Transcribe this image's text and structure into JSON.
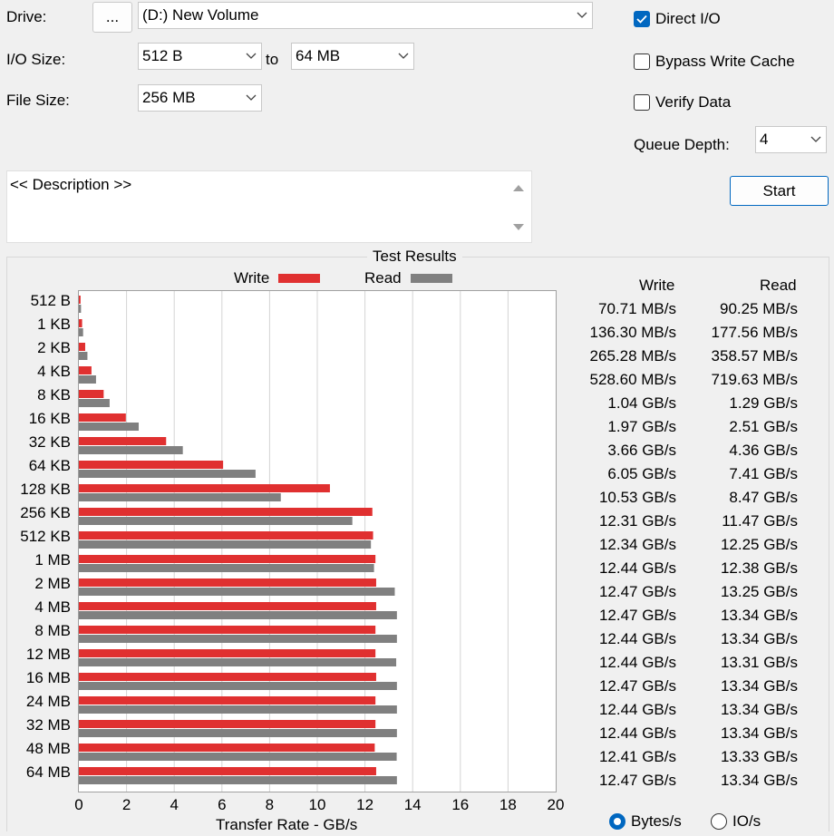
{
  "form": {
    "drive_label": "Drive:",
    "browse_label": "...",
    "drive_value": "(D:) New Volume",
    "io_size_label": "I/O Size:",
    "io_from": "512 B",
    "to_label": "to",
    "io_to": "64 MB",
    "file_size_label": "File Size:",
    "file_size": "256 MB",
    "description": "<< Description >>"
  },
  "options": {
    "direct_io_label": "Direct I/O",
    "direct_io_checked": true,
    "bypass_label": "Bypass Write Cache",
    "bypass_checked": false,
    "verify_label": "Verify Data",
    "verify_checked": false,
    "queue_depth_label": "Queue Depth:",
    "queue_depth": "4",
    "start_label": "Start"
  },
  "results": {
    "group_title": "Test Results",
    "write_header": "Write",
    "read_header": "Read",
    "rows": [
      {
        "size": "512 B",
        "write": "70.71 MB/s",
        "read": "90.25 MB/s"
      },
      {
        "size": "1 KB",
        "write": "136.30 MB/s",
        "read": "177.56 MB/s"
      },
      {
        "size": "2 KB",
        "write": "265.28 MB/s",
        "read": "358.57 MB/s"
      },
      {
        "size": "4 KB",
        "write": "528.60 MB/s",
        "read": "719.63 MB/s"
      },
      {
        "size": "8 KB",
        "write": "1.04 GB/s",
        "read": "1.29 GB/s"
      },
      {
        "size": "16 KB",
        "write": "1.97 GB/s",
        "read": "2.51 GB/s"
      },
      {
        "size": "32 KB",
        "write": "3.66 GB/s",
        "read": "4.36 GB/s"
      },
      {
        "size": "64 KB",
        "write": "6.05 GB/s",
        "read": "7.41 GB/s"
      },
      {
        "size": "128 KB",
        "write": "10.53 GB/s",
        "read": "8.47 GB/s"
      },
      {
        "size": "256 KB",
        "write": "12.31 GB/s",
        "read": "11.47 GB/s"
      },
      {
        "size": "512 KB",
        "write": "12.34 GB/s",
        "read": "12.25 GB/s"
      },
      {
        "size": "1 MB",
        "write": "12.44 GB/s",
        "read": "12.38 GB/s"
      },
      {
        "size": "2 MB",
        "write": "12.47 GB/s",
        "read": "13.25 GB/s"
      },
      {
        "size": "4 MB",
        "write": "12.47 GB/s",
        "read": "13.34 GB/s"
      },
      {
        "size": "8 MB",
        "write": "12.44 GB/s",
        "read": "13.34 GB/s"
      },
      {
        "size": "12 MB",
        "write": "12.44 GB/s",
        "read": "13.31 GB/s"
      },
      {
        "size": "16 MB",
        "write": "12.47 GB/s",
        "read": "13.34 GB/s"
      },
      {
        "size": "24 MB",
        "write": "12.44 GB/s",
        "read": "13.34 GB/s"
      },
      {
        "size": "32 MB",
        "write": "12.44 GB/s",
        "read": "13.34 GB/s"
      },
      {
        "size": "48 MB",
        "write": "12.41 GB/s",
        "read": "13.33 GB/s"
      },
      {
        "size": "64 MB",
        "write": "12.47 GB/s",
        "read": "13.34 GB/s"
      }
    ],
    "units": {
      "bytes_label": "Bytes/s",
      "bytes_selected": true,
      "io_label": "IO/s",
      "io_selected": false
    }
  },
  "chart_data": {
    "type": "bar",
    "orientation": "horizontal",
    "title": "",
    "xlabel": "Transfer Rate - GB/s",
    "ylabel": "",
    "xlim": [
      0,
      20
    ],
    "xticks": [
      "0",
      "2",
      "4",
      "6",
      "8",
      "10",
      "12",
      "14",
      "16",
      "18",
      "20"
    ],
    "grid": true,
    "legend_position": "top",
    "categories": [
      "512 B",
      "1 KB",
      "2 KB",
      "4 KB",
      "8 KB",
      "16 KB",
      "32 KB",
      "64 KB",
      "128 KB",
      "256 KB",
      "512 KB",
      "1 MB",
      "2 MB",
      "4 MB",
      "8 MB",
      "12 MB",
      "16 MB",
      "24 MB",
      "32 MB",
      "48 MB",
      "64 MB"
    ],
    "series": [
      {
        "name": "Write",
        "color": "#e03030",
        "values": [
          0.07071,
          0.1363,
          0.26528,
          0.5286,
          1.04,
          1.97,
          3.66,
          6.05,
          10.53,
          12.31,
          12.34,
          12.44,
          12.47,
          12.47,
          12.44,
          12.44,
          12.47,
          12.44,
          12.44,
          12.41,
          12.47
        ]
      },
      {
        "name": "Read",
        "color": "#808080",
        "values": [
          0.09025,
          0.17756,
          0.35857,
          0.71963,
          1.29,
          2.51,
          4.36,
          7.41,
          8.47,
          11.47,
          12.25,
          12.38,
          13.25,
          13.34,
          13.34,
          13.31,
          13.34,
          13.34,
          13.34,
          13.33,
          13.34
        ]
      }
    ]
  },
  "colors": {
    "accent": "#0067c0",
    "write": "#e03030",
    "read": "#808080"
  }
}
